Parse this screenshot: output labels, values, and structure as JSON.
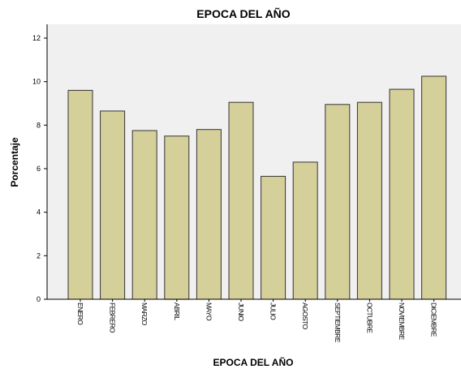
{
  "chart_data": {
    "type": "bar",
    "title": "EPOCA DEL AÑO",
    "xlabel": "EPOCA DEL AÑO",
    "ylabel": "Porcentaje",
    "categories": [
      "ENERO",
      "FEBRERO",
      "MARZO",
      "ABRIL",
      "MAYO",
      "JUNIO",
      "JULIO",
      "AGOSTO",
      "SEPTIEMBRE",
      "OCTUBRE",
      "NOVIEMBRE",
      "DICIEMBRE"
    ],
    "values": [
      9.6,
      8.65,
      7.75,
      7.5,
      7.8,
      9.05,
      5.65,
      6.3,
      8.95,
      9.05,
      9.65,
      10.25
    ],
    "ylim": [
      0,
      12
    ],
    "yticks": [
      0,
      2,
      4,
      6,
      8,
      10,
      12
    ],
    "grid": false,
    "colors": {
      "bar_fill": "#d5cf9a",
      "bar_stroke": "#333333",
      "plot_background": "#f0f0f0",
      "axis": "#000000"
    }
  }
}
